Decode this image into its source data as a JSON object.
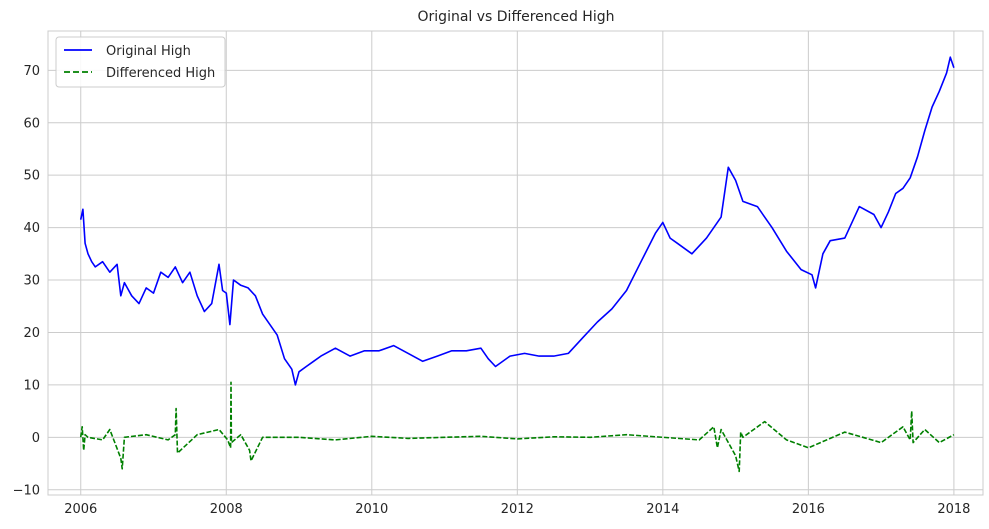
{
  "chart_data": {
    "type": "line",
    "title": "Original vs Differenced High",
    "xlabel": "",
    "ylabel": "",
    "xlim": [
      2005.55,
      2018.4
    ],
    "ylim": [
      -11,
      77.5
    ],
    "x_ticks": [
      2006,
      2008,
      2010,
      2012,
      2014,
      2016,
      2018
    ],
    "x_tick_labels": [
      "2006",
      "2008",
      "2010",
      "2012",
      "2014",
      "2016",
      "2018"
    ],
    "y_ticks": [
      -10,
      0,
      10,
      20,
      30,
      40,
      50,
      60,
      70
    ],
    "y_tick_labels": [
      "−10",
      "0",
      "10",
      "20",
      "30",
      "40",
      "50",
      "60",
      "70"
    ],
    "grid": true,
    "legend_position": "top-left",
    "series": [
      {
        "name": "Original High",
        "color": "#0000ff",
        "line_style": "solid",
        "x": [
          2006.0,
          2006.03,
          2006.06,
          2006.1,
          2006.15,
          2006.2,
          2006.3,
          2006.4,
          2006.5,
          2006.55,
          2006.6,
          2006.7,
          2006.8,
          2006.9,
          2007.0,
          2007.1,
          2007.2,
          2007.3,
          2007.4,
          2007.5,
          2007.6,
          2007.7,
          2007.8,
          2007.9,
          2007.95,
          2008.0,
          2008.05,
          2008.1,
          2008.15,
          2008.2,
          2008.3,
          2008.4,
          2008.5,
          2008.6,
          2008.7,
          2008.8,
          2008.9,
          2008.95,
          2009.0,
          2009.1,
          2009.2,
          2009.3,
          2009.5,
          2009.7,
          2009.9,
          2010.1,
          2010.3,
          2010.5,
          2010.7,
          2010.9,
          2011.1,
          2011.3,
          2011.5,
          2011.6,
          2011.7,
          2011.9,
          2012.1,
          2012.3,
          2012.5,
          2012.7,
          2012.9,
          2013.1,
          2013.3,
          2013.5,
          2013.7,
          2013.9,
          2014.0,
          2014.1,
          2014.2,
          2014.4,
          2014.6,
          2014.8,
          2014.9,
          2015.0,
          2015.1,
          2015.3,
          2015.5,
          2015.7,
          2015.9,
          2016.05,
          2016.1,
          2016.2,
          2016.3,
          2016.5,
          2016.7,
          2016.9,
          2017.0,
          2017.1,
          2017.2,
          2017.3,
          2017.4,
          2017.5,
          2017.6,
          2017.7,
          2017.8,
          2017.9,
          2017.95,
          2018.0
        ],
        "values": [
          41.5,
          43.5,
          37.0,
          35.0,
          33.5,
          32.5,
          33.5,
          31.5,
          33.0,
          27.0,
          29.5,
          27.0,
          25.5,
          28.5,
          27.5,
          31.5,
          30.5,
          32.5,
          29.5,
          31.5,
          27.0,
          24.0,
          25.5,
          33.0,
          28.0,
          27.5,
          21.5,
          30.0,
          29.5,
          29.0,
          28.5,
          27.0,
          23.5,
          21.5,
          19.5,
          15.0,
          13.0,
          10.0,
          12.5,
          13.5,
          14.5,
          15.5,
          17.0,
          15.5,
          16.5,
          16.5,
          17.5,
          16.0,
          14.5,
          15.5,
          16.5,
          16.5,
          17.0,
          15.0,
          13.5,
          15.5,
          16.0,
          15.5,
          15.5,
          16.0,
          19.0,
          22.0,
          24.5,
          28.0,
          33.5,
          39.0,
          41.0,
          38.0,
          37.0,
          35.0,
          38.0,
          42.0,
          51.5,
          49.0,
          45.0,
          44.0,
          40.0,
          35.5,
          32.0,
          31.0,
          28.5,
          35.0,
          37.5,
          38.0,
          44.0,
          42.5,
          40.0,
          43.0,
          46.5,
          47.5,
          49.5,
          53.5,
          58.5,
          63.0,
          66.0,
          69.5,
          72.5,
          70.5
        ]
      },
      {
        "name": "Differenced High",
        "color": "#008000",
        "line_style": "dashed",
        "x": [
          2006.0,
          2006.02,
          2006.04,
          2006.06,
          2006.1,
          2006.3,
          2006.4,
          2006.55,
          2006.57,
          2006.6,
          2006.9,
          2007.2,
          2007.3,
          2007.31,
          2007.33,
          2007.6,
          2007.9,
          2008.02,
          2008.06,
          2008.065,
          2008.07,
          2008.2,
          2008.32,
          2008.34,
          2008.5,
          2009.0,
          2009.5,
          2010.0,
          2010.5,
          2011.0,
          2011.5,
          2012.0,
          2012.5,
          2013.0,
          2013.5,
          2014.0,
          2014.5,
          2014.7,
          2014.75,
          2014.8,
          2015.0,
          2015.05,
          2015.07,
          2015.1,
          2015.4,
          2015.7,
          2016.0,
          2016.5,
          2017.0,
          2017.3,
          2017.4,
          2017.42,
          2017.44,
          2017.6,
          2017.8,
          2018.0
        ],
        "values": [
          0.0,
          2.0,
          -2.5,
          0.5,
          0.0,
          -0.5,
          1.5,
          -4.0,
          -6.0,
          0.0,
          0.5,
          -0.5,
          0.5,
          5.5,
          -3.0,
          0.5,
          1.5,
          -0.5,
          -2.0,
          10.5,
          -1.0,
          0.5,
          -2.5,
          -4.5,
          0.0,
          0.0,
          -0.5,
          0.2,
          -0.2,
          0.0,
          0.2,
          -0.3,
          0.1,
          0.0,
          0.5,
          0.0,
          -0.5,
          2.0,
          -2.0,
          1.5,
          -3.5,
          -6.5,
          1.0,
          0.0,
          3.0,
          -0.5,
          -2.0,
          1.0,
          -1.0,
          2.0,
          -0.5,
          5.0,
          -1.0,
          1.5,
          -1.0,
          0.5
        ]
      }
    ]
  }
}
